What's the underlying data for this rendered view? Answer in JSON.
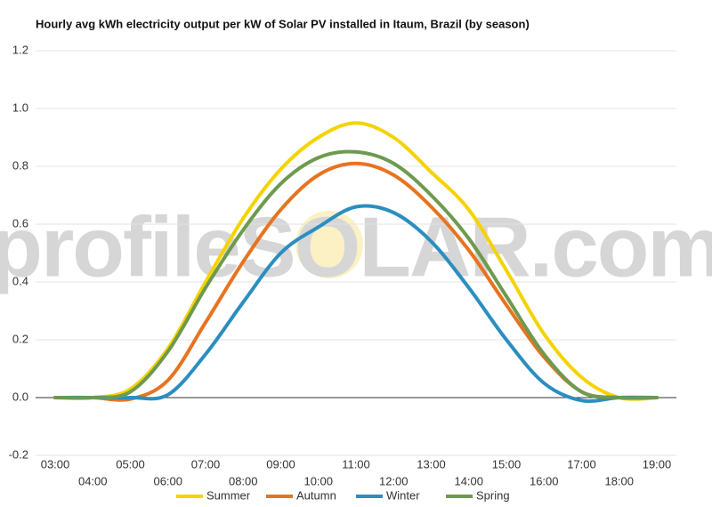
{
  "chart_data": {
    "type": "line",
    "title": "Hourly avg kWh electricity output per kW of Solar PV installed in Itaum, Brazil (by season)",
    "watermark": "profileSOLAR.com",
    "categories": [
      "03:00",
      "04:00",
      "05:00",
      "06:00",
      "07:00",
      "08:00",
      "09:00",
      "10:00",
      "11:00",
      "12:00",
      "13:00",
      "14:00",
      "15:00",
      "16:00",
      "17:00",
      "18:00",
      "19:00"
    ],
    "series": [
      {
        "name": "Summer",
        "color": "#f5d300",
        "values": [
          0,
          0,
          0.03,
          0.17,
          0.4,
          0.62,
          0.79,
          0.9,
          0.95,
          0.9,
          0.78,
          0.65,
          0.44,
          0.22,
          0.07,
          0,
          0
        ]
      },
      {
        "name": "Autumn",
        "color": "#e8731f",
        "values": [
          0,
          0,
          -0.005,
          0.06,
          0.26,
          0.47,
          0.65,
          0.77,
          0.81,
          0.77,
          0.66,
          0.51,
          0.32,
          0.14,
          0.02,
          0,
          0
        ]
      },
      {
        "name": "Winter",
        "color": "#2b8ec0",
        "values": [
          0,
          0,
          0,
          0.01,
          0.15,
          0.33,
          0.5,
          0.59,
          0.66,
          0.64,
          0.54,
          0.38,
          0.2,
          0.05,
          -0.01,
          0,
          0
        ]
      },
      {
        "name": "Spring",
        "color": "#6e9a4f",
        "values": [
          0,
          0,
          0.02,
          0.16,
          0.38,
          0.58,
          0.74,
          0.83,
          0.85,
          0.81,
          0.7,
          0.55,
          0.35,
          0.15,
          0.02,
          0,
          0
        ]
      }
    ],
    "ylim": [
      -0.2,
      1.2
    ],
    "yticks": [
      -0.2,
      {
        "value": 0,
        "label": "0.0"
      },
      0.2,
      0.4,
      0.6,
      0.8,
      {
        "value": 1,
        "label": "1.0"
      },
      1.2
    ],
    "grid": true,
    "legend": "bottom"
  }
}
